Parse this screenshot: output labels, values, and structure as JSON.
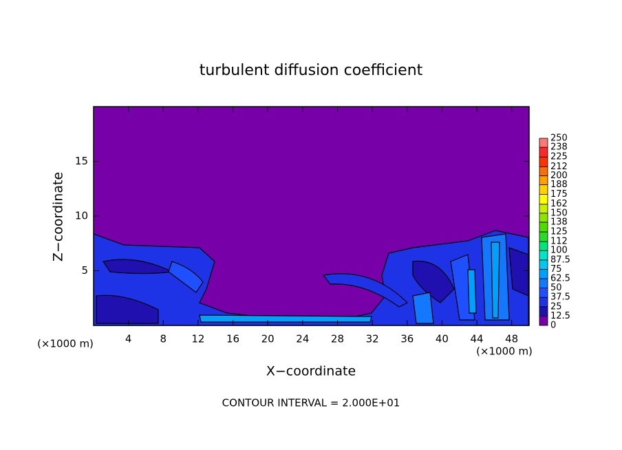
{
  "chart_data": {
    "type": "contour",
    "title": "turbulent diffusion coefficient",
    "xlabel": "X−coordinate",
    "ylabel": "Z−coordinate",
    "axis_unit": "(×1000 m)",
    "note": "CONTOUR INTERVAL = 2.000E+01",
    "xlim": [
      0,
      50
    ],
    "ylim": [
      0,
      20
    ],
    "xticks": [
      4,
      8,
      12,
      16,
      20,
      24,
      28,
      32,
      36,
      40,
      44,
      48
    ],
    "yticks": [
      5,
      10,
      15
    ],
    "colorbar": {
      "levels": [
        0,
        12.5,
        25,
        37.5,
        50,
        62.5,
        75,
        87.5,
        100,
        112,
        125,
        138,
        150,
        162,
        175,
        188,
        200,
        212,
        225,
        238,
        250
      ],
      "colors": [
        "#7800a8",
        "#2010b0",
        "#1e32e6",
        "#1e50ff",
        "#1478ff",
        "#00a0ff",
        "#00c8f0",
        "#00e6c8",
        "#00e67a",
        "#28dc28",
        "#50dc00",
        "#8ce600",
        "#c8f000",
        "#ffff00",
        "#ffd200",
        "#ffa000",
        "#ff6e00",
        "#ff3200",
        "#ff2828",
        "#ff7878"
      ]
    }
  }
}
